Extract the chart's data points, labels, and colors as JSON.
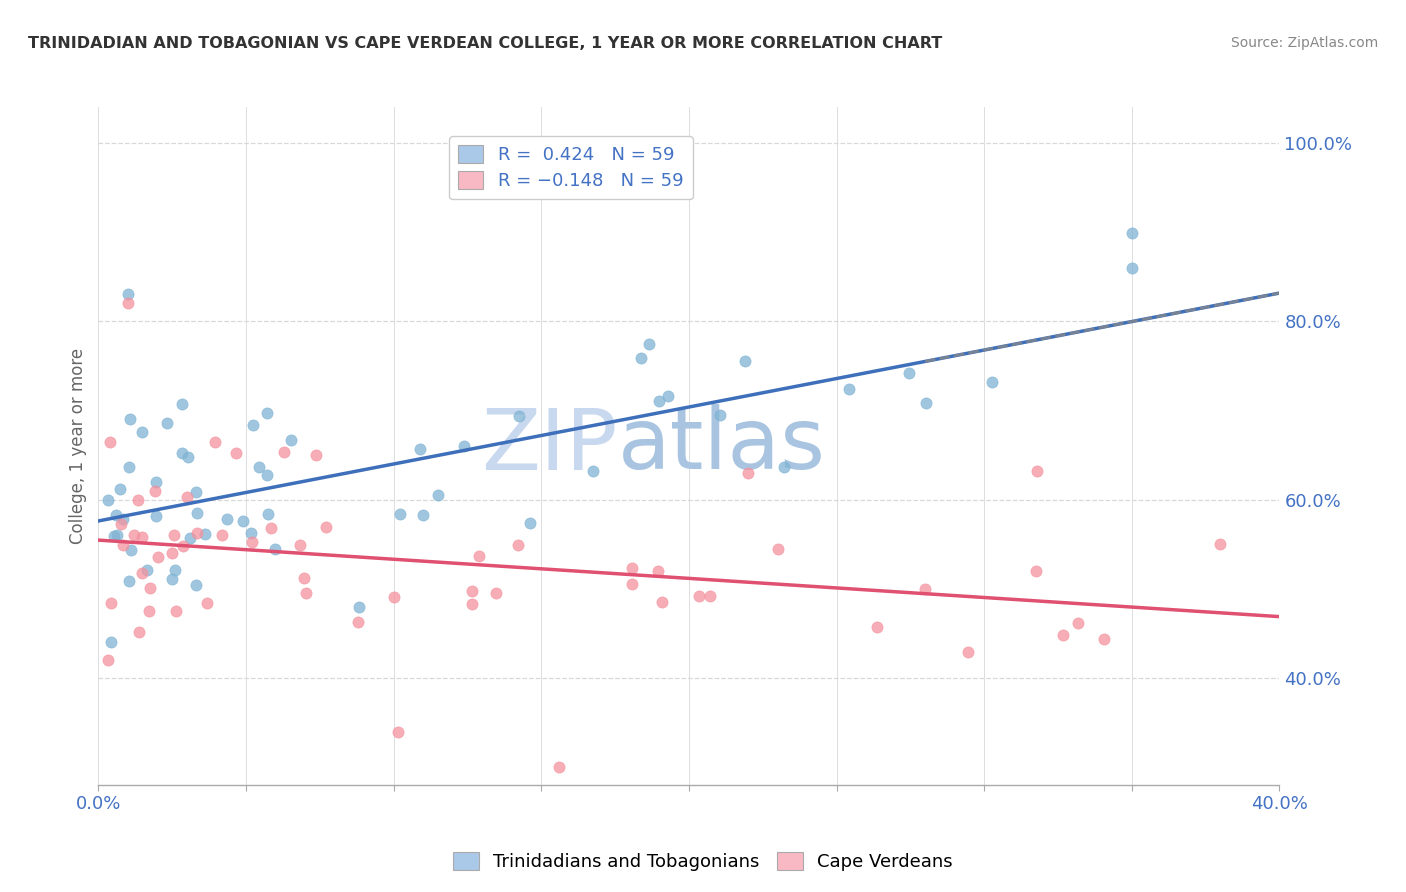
{
  "title": "TRINIDADIAN AND TOBAGONIAN VS CAPE VERDEAN COLLEGE, 1 YEAR OR MORE CORRELATION CHART",
  "source": "Source: ZipAtlas.com",
  "ylabel": "College, 1 year or more",
  "ylabel_right_ticks": [
    "40.0%",
    "60.0%",
    "80.0%",
    "100.0%"
  ],
  "ylabel_right_vals": [
    0.4,
    0.6,
    0.8,
    1.0
  ],
  "xmin": 0.0,
  "xmax": 0.4,
  "ymin": 0.28,
  "ymax": 1.04,
  "blue_dot_color": "#7fb3d3",
  "pink_dot_color": "#f4929e",
  "blue_line_color": "#3d6fba",
  "pink_line_color": "#e05070",
  "blue_legend_fill": "#aac8e8",
  "pink_legend_fill": "#f8b8c4",
  "watermark_color": "#d0dff0",
  "watermark_color2": "#c8d8e8",
  "background_color": "#ffffff",
  "grid_color": "#d8d8d8",
  "tick_label_color": "#4472c4",
  "title_color": "#333333",
  "source_color": "#888888",
  "ylabel_color": "#666666",
  "blue_line_intercept": 0.547,
  "blue_line_slope": 0.82,
  "pink_line_intercept": 0.562,
  "pink_line_slope": -0.3,
  "seed": 123
}
